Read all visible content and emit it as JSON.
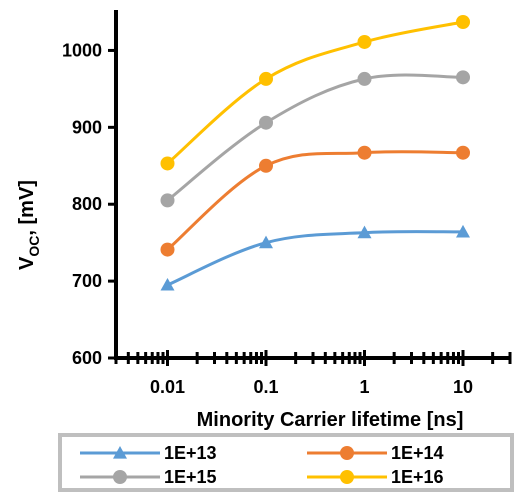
{
  "chart_data": {
    "type": "line",
    "x": [
      0.01,
      0.1,
      1,
      10
    ],
    "x_tick_labels": [
      "0.01",
      "0.1",
      "1",
      "10"
    ],
    "x_scale": "log",
    "xlabel": "Minority Carrier lifetime [ns]",
    "ylabel_main": "V",
    "ylabel_sub": "OC",
    "ylabel_rest": ", [mV]",
    "ylim": [
      600,
      1050
    ],
    "y_ticks": [
      600,
      700,
      800,
      900,
      1000
    ],
    "y_tick_labels": [
      "600",
      "700",
      "800",
      "900",
      "1000"
    ],
    "grid": false,
    "legend_position": "bottom",
    "series": [
      {
        "name": "1E+13",
        "marker": "triangle",
        "color": "#5B9BD5",
        "values": [
          695,
          750,
          763,
          764
        ]
      },
      {
        "name": "1E+14",
        "marker": "circle",
        "color": "#ED7D31",
        "values": [
          741,
          850,
          867,
          867
        ]
      },
      {
        "name": "1E+15",
        "marker": "circle",
        "color": "#A5A5A5",
        "values": [
          805,
          906,
          963,
          965
        ]
      },
      {
        "name": "1E+16",
        "marker": "circle",
        "color": "#FFC000",
        "values": [
          853,
          963,
          1011,
          1037
        ]
      }
    ]
  }
}
